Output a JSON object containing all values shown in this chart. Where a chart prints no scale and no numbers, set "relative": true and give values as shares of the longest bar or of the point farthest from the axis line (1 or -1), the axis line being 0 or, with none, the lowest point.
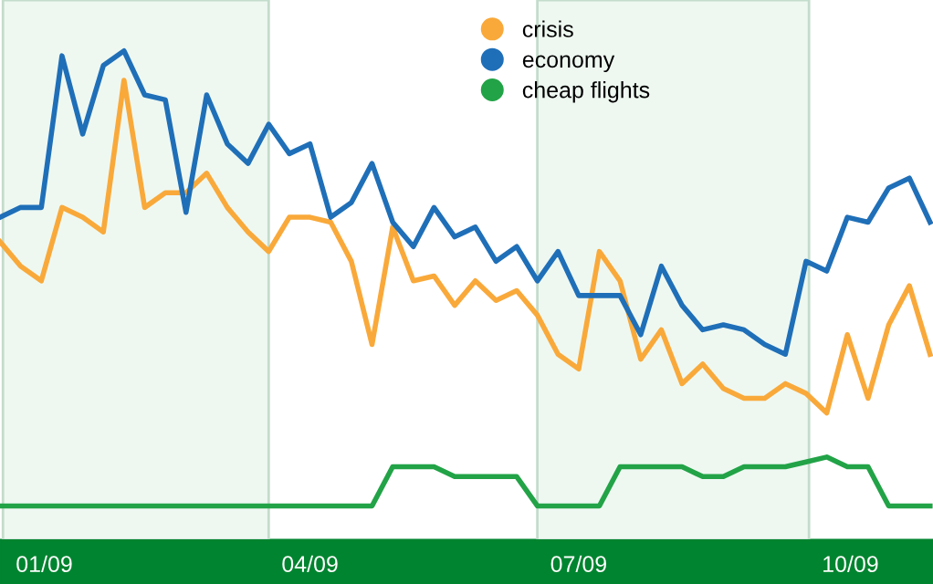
{
  "chart_data": {
    "type": "line",
    "relative": true,
    "x": [
      "2008-12-31",
      "2009-01-07",
      "2009-01-14",
      "2009-01-21",
      "2009-01-28",
      "2009-02-04",
      "2009-02-11",
      "2009-02-18",
      "2009-02-25",
      "2009-03-04",
      "2009-03-11",
      "2009-03-18",
      "2009-03-25",
      "2009-04-01",
      "2009-04-08",
      "2009-04-15",
      "2009-04-22",
      "2009-04-29",
      "2009-05-06",
      "2009-05-13",
      "2009-05-20",
      "2009-05-27",
      "2009-06-03",
      "2009-06-10",
      "2009-06-17",
      "2009-06-24",
      "2009-07-01",
      "2009-07-08",
      "2009-07-15",
      "2009-07-22",
      "2009-07-29",
      "2009-08-05",
      "2009-08-12",
      "2009-08-19",
      "2009-08-26",
      "2009-09-02",
      "2009-09-09",
      "2009-09-16",
      "2009-09-23",
      "2009-09-30",
      "2009-10-07",
      "2009-10-14",
      "2009-10-21",
      "2009-10-28",
      "2009-11-04",
      "2009-11-11"
    ],
    "xlim": [
      "2008-12-31",
      "2009-11-12"
    ],
    "xticks": [
      {
        "value": "2009-01-15",
        "label": "01/09"
      },
      {
        "value": "2009-04-15",
        "label": "04/09"
      },
      {
        "value": "2009-07-15",
        "label": "07/09"
      },
      {
        "value": "2009-10-15",
        "label": "10/09"
      }
    ],
    "series": [
      {
        "name": "crisis",
        "color": "#f9a93a",
        "values": [
          0.61,
          0.56,
          0.53,
          0.68,
          0.66,
          0.63,
          0.94,
          0.68,
          0.71,
          0.71,
          0.75,
          0.68,
          0.63,
          0.59,
          0.66,
          0.66,
          0.65,
          0.57,
          0.4,
          0.64,
          0.53,
          0.54,
          0.48,
          0.53,
          0.49,
          0.51,
          0.46,
          0.38,
          0.35,
          0.59,
          0.53,
          0.37,
          0.43,
          0.32,
          0.36,
          0.31,
          0.29,
          0.29,
          0.32,
          0.3,
          0.26,
          0.42,
          0.29,
          0.44,
          0.52,
          0.38
        ]
      },
      {
        "name": "economy",
        "color": "#1f6fb8",
        "values": [
          0.66,
          0.68,
          0.68,
          0.99,
          0.83,
          0.97,
          1.0,
          0.91,
          0.9,
          0.67,
          0.91,
          0.81,
          0.77,
          0.85,
          0.79,
          0.81,
          0.66,
          0.69,
          0.77,
          0.65,
          0.6,
          0.68,
          0.62,
          0.64,
          0.57,
          0.6,
          0.53,
          0.59,
          0.5,
          0.5,
          0.5,
          0.42,
          0.56,
          0.48,
          0.43,
          0.44,
          0.43,
          0.4,
          0.38,
          0.57,
          0.55,
          0.66,
          0.65,
          0.72,
          0.74,
          0.65
        ]
      },
      {
        "name": "cheap flights",
        "color": "#22a347",
        "values": [
          0.07,
          0.07,
          0.07,
          0.07,
          0.07,
          0.07,
          0.07,
          0.07,
          0.07,
          0.07,
          0.07,
          0.07,
          0.07,
          0.07,
          0.07,
          0.07,
          0.07,
          0.07,
          0.07,
          0.15,
          0.15,
          0.15,
          0.13,
          0.13,
          0.13,
          0.13,
          0.07,
          0.07,
          0.07,
          0.07,
          0.15,
          0.15,
          0.15,
          0.15,
          0.13,
          0.13,
          0.15,
          0.15,
          0.15,
          0.16,
          0.17,
          0.15,
          0.15,
          0.07,
          0.07,
          0.07
        ]
      }
    ],
    "bands": [
      {
        "axis": "x",
        "from": "2009-01-01",
        "to": "2009-04-01",
        "color": "#eef8f1"
      },
      {
        "axis": "x",
        "from": "2009-07-01",
        "to": "2009-10-01",
        "color": "#eef8f1"
      }
    ],
    "legend": "top",
    "marker": "none",
    "line_style": "solid"
  }
}
